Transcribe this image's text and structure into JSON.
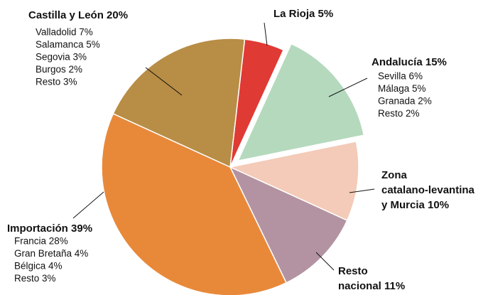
{
  "chart_data": {
    "type": "pie",
    "start_angle": 6.5,
    "categories": [
      "La Rioja 5%",
      "Andalucía 15%",
      "Zona catalano-levantina y Murcia 10%",
      "Resto nacional 11%",
      "Importación 39%",
      "Castilla y León 20%"
    ],
    "values": [
      5,
      15,
      10,
      11,
      39,
      20
    ],
    "colors": [
      "#e03a35",
      "#b5d9bd",
      "#f3cbb8",
      "#b393a2",
      "#e8893a",
      "#b88d45"
    ],
    "exploded": [
      false,
      true,
      false,
      false,
      false,
      false
    ],
    "details": [
      [],
      [
        "Sevilla 6%",
        "Málaga 5%",
        "Granada 2%",
        "Resto 2%"
      ],
      [],
      [],
      [
        "Francia 28%",
        "Gran Bretaña 4%",
        "Bélgica 4%",
        "Resto 3%"
      ],
      [
        "Valladolid 7%",
        "Salamanca 5%",
        "Segovia 3%",
        "Burgos 2%",
        "Resto 3%"
      ]
    ]
  }
}
